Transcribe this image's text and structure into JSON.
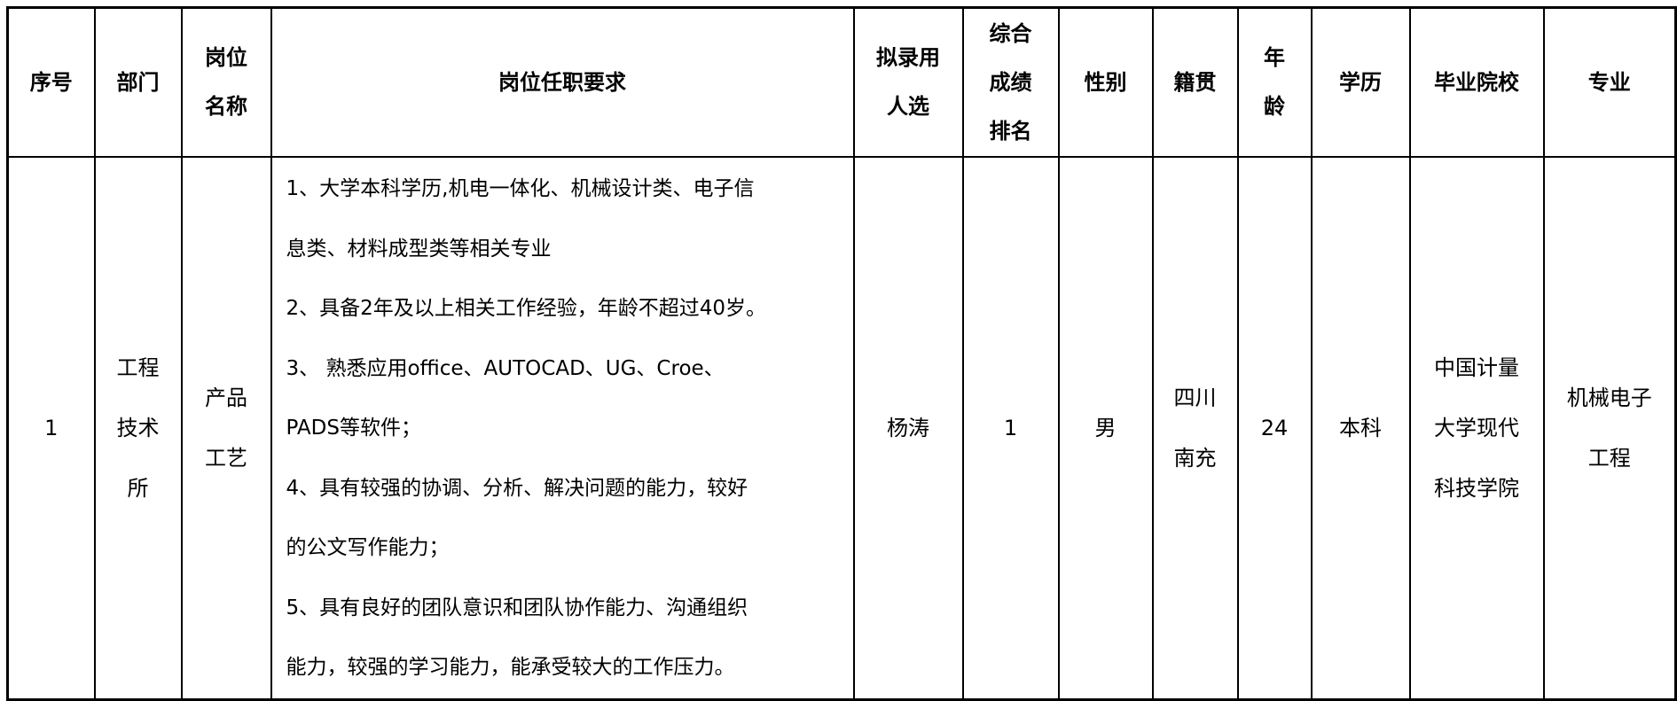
{
  "headers": [
    [
      "序号"
    ],
    [
      "部门"
    ],
    [
      "岗位",
      "名称"
    ],
    [
      "岗位任职要求"
    ],
    [
      "拟录用",
      "人选"
    ],
    [
      "综合",
      "成绩",
      "排名"
    ],
    [
      "性别"
    ],
    [
      "籍贯"
    ],
    [
      "年",
      "龄"
    ],
    [
      "学历"
    ],
    [
      "毕业院校"
    ],
    [
      "专业"
    ]
  ],
  "row": {
    "index": "1",
    "department": [
      "工程",
      "技术",
      "所"
    ],
    "position": [
      "产品",
      "工艺"
    ],
    "requirements": [
      "1、大学本科学历,机电一体化、机械设计类、电子信",
      "息类、材料成型类等相关专业",
      "2、具备2年及以上相关工作经验，年龄不超过40岁。",
      "3、 熟悉应用office、AUTOCAD、UG、Croe、",
      "PADS等软件；",
      "4、具有较强的协调、分析、解决问题的能力，较好",
      "的公文写作能力；",
      "5、具有良好的团队意识和团队协作能力、沟通组织",
      "能力，较强的学习能力，能承受较大的工作压力。"
    ],
    "candidate": "杨涛",
    "rank": "1",
    "gender": "男",
    "origin": [
      "四川",
      "南充"
    ],
    "age": "24",
    "education": "本科",
    "school": [
      "中国计量",
      "大学现代",
      "科技学院"
    ],
    "major": [
      "机械电子",
      "工程"
    ]
  }
}
